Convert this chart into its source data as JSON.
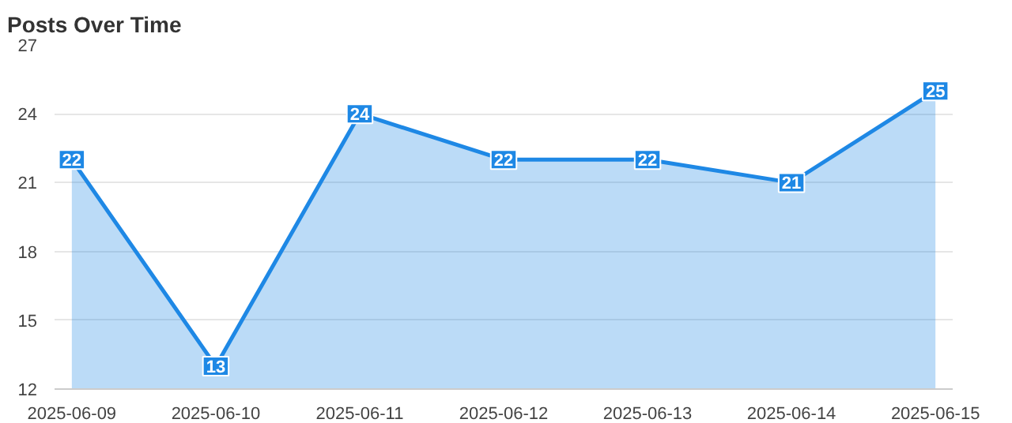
{
  "chart_data": {
    "type": "area",
    "title": "Posts Over Time",
    "categories": [
      "2025-06-09",
      "2025-06-10",
      "2025-06-11",
      "2025-06-12",
      "2025-06-13",
      "2025-06-14",
      "2025-06-15"
    ],
    "series": [
      {
        "color": "#1e88e5",
        "values": [
          22,
          13,
          24,
          22,
          22,
          21,
          25
        ]
      }
    ],
    "ylim": [
      12,
      27
    ],
    "yticks": [
      12,
      15,
      18,
      21,
      24,
      27
    ],
    "grid": "y",
    "data_labels": true
  }
}
